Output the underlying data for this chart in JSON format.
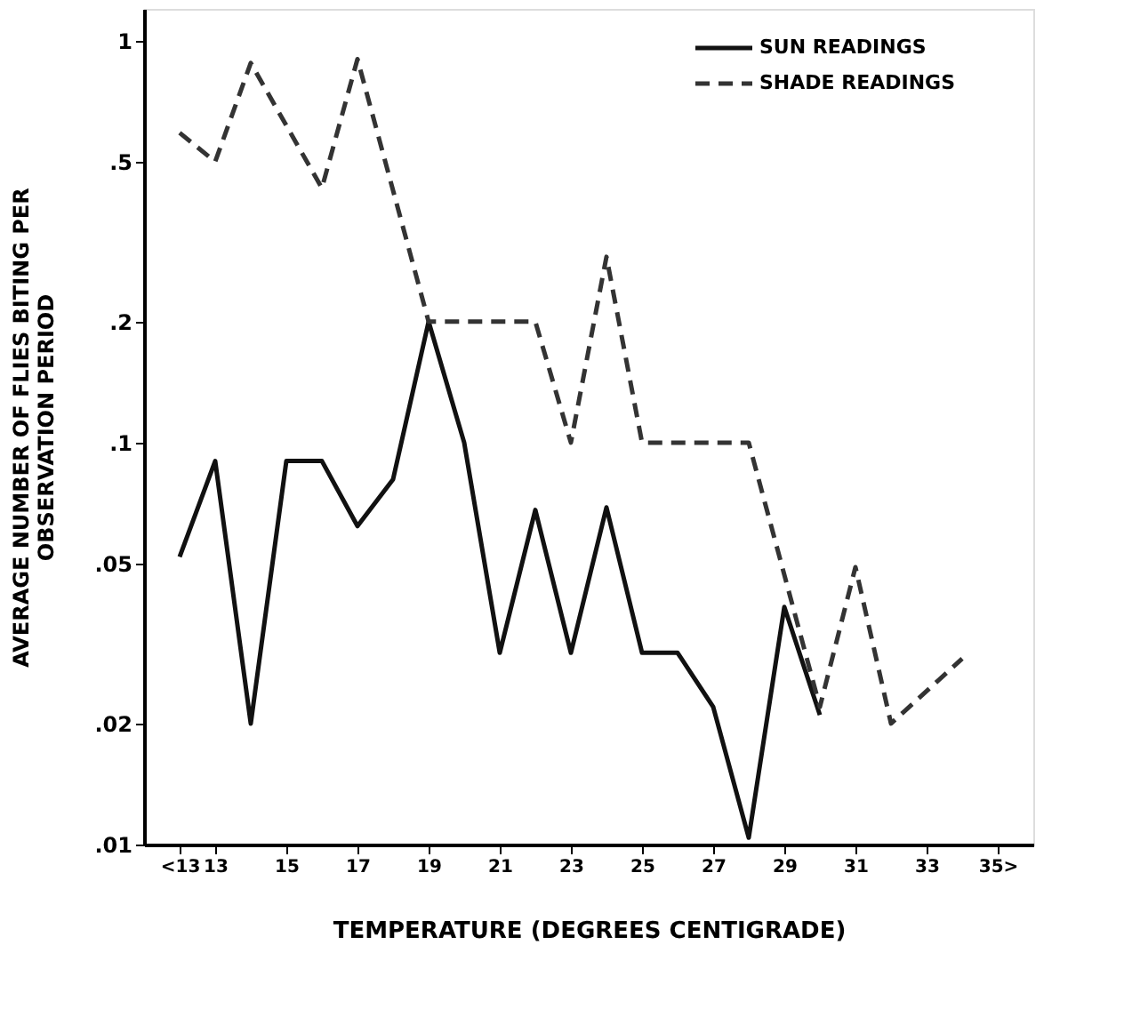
{
  "chart_data": {
    "type": "line",
    "xlabel": "TEMPERATURE (DEGREES CENTIGRADE)",
    "ylabel": "AVERAGE NUMBER OF FLIES BITING PER\nOBSERVATION    PERIOD",
    "log": "y",
    "grid": false,
    "legend": "top right",
    "marker": "none",
    "xlim": [
      11,
      36
    ],
    "xticks": [
      {
        "value": 12,
        "label": "<13"
      },
      13,
      15,
      17,
      19,
      21,
      23,
      25,
      27,
      29,
      31,
      33,
      {
        "value": 35,
        "label": "35>"
      }
    ],
    "ylim": [
      0.01,
      1.2
    ],
    "yticks": [
      {
        "value": 0.01,
        "label": ".01"
      },
      {
        "value": 0.02,
        "label": ".02"
      },
      {
        "value": 0.05,
        "label": ".05"
      },
      {
        "value": 0.1,
        "label": ".1"
      },
      {
        "value": 0.2,
        "label": ".2"
      },
      {
        "value": 0.5,
        "label": ".5"
      },
      1
    ],
    "series": [
      {
        "name": "SUN READINGS",
        "color": "#111111",
        "line_style": "solid",
        "x": [
          12,
          13,
          14,
          15,
          16,
          17,
          18,
          19,
          20,
          21,
          22,
          23,
          24,
          25,
          26,
          27,
          28,
          29,
          30
        ],
        "values": [
          0.052,
          0.09,
          0.02,
          0.09,
          0.09,
          0.062,
          0.081,
          0.2,
          0.1,
          0.03,
          0.068,
          0.03,
          0.069,
          0.03,
          0.03,
          0.022,
          0.0104,
          0.039,
          0.021
        ]
      },
      {
        "name": "SHADE READINGS",
        "color": "#333333",
        "line_style": "dashed",
        "x": [
          12,
          13,
          14,
          16,
          17,
          19,
          22,
          23,
          24,
          25,
          28,
          30,
          31,
          32,
          34
        ],
        "values": [
          0.59,
          0.5,
          0.88,
          0.43,
          0.9,
          0.2,
          0.2,
          0.1,
          0.29,
          0.1,
          0.1,
          0.022,
          0.049,
          0.02,
          0.029
        ]
      }
    ]
  }
}
